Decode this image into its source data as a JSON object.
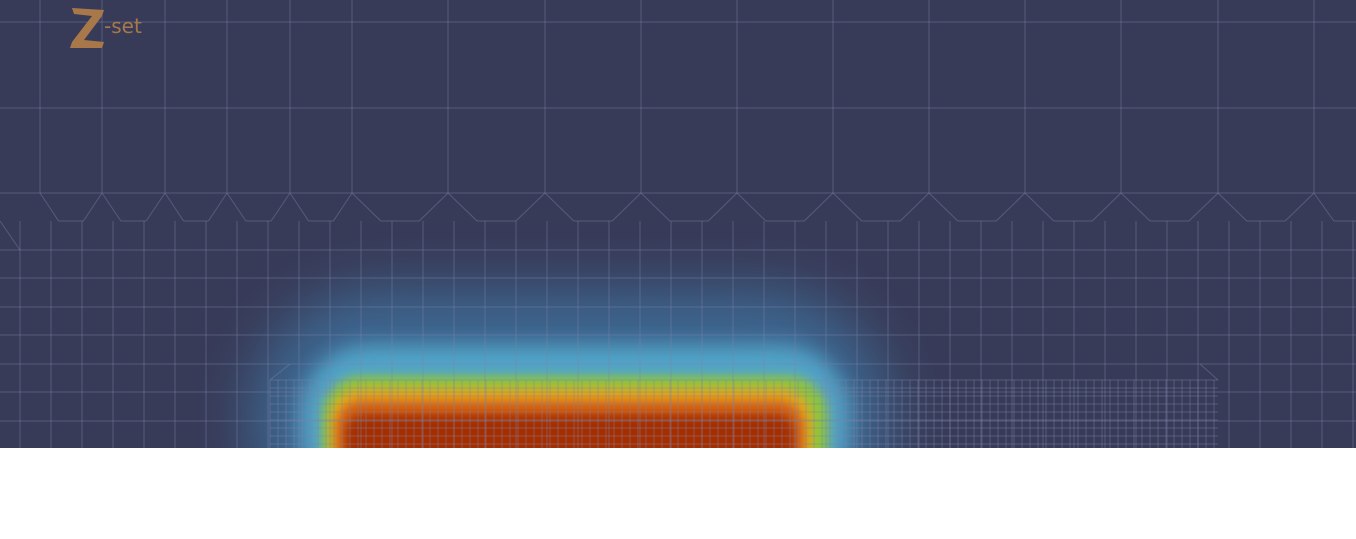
{
  "header": {
    "logo_text": "-set"
  }
}
